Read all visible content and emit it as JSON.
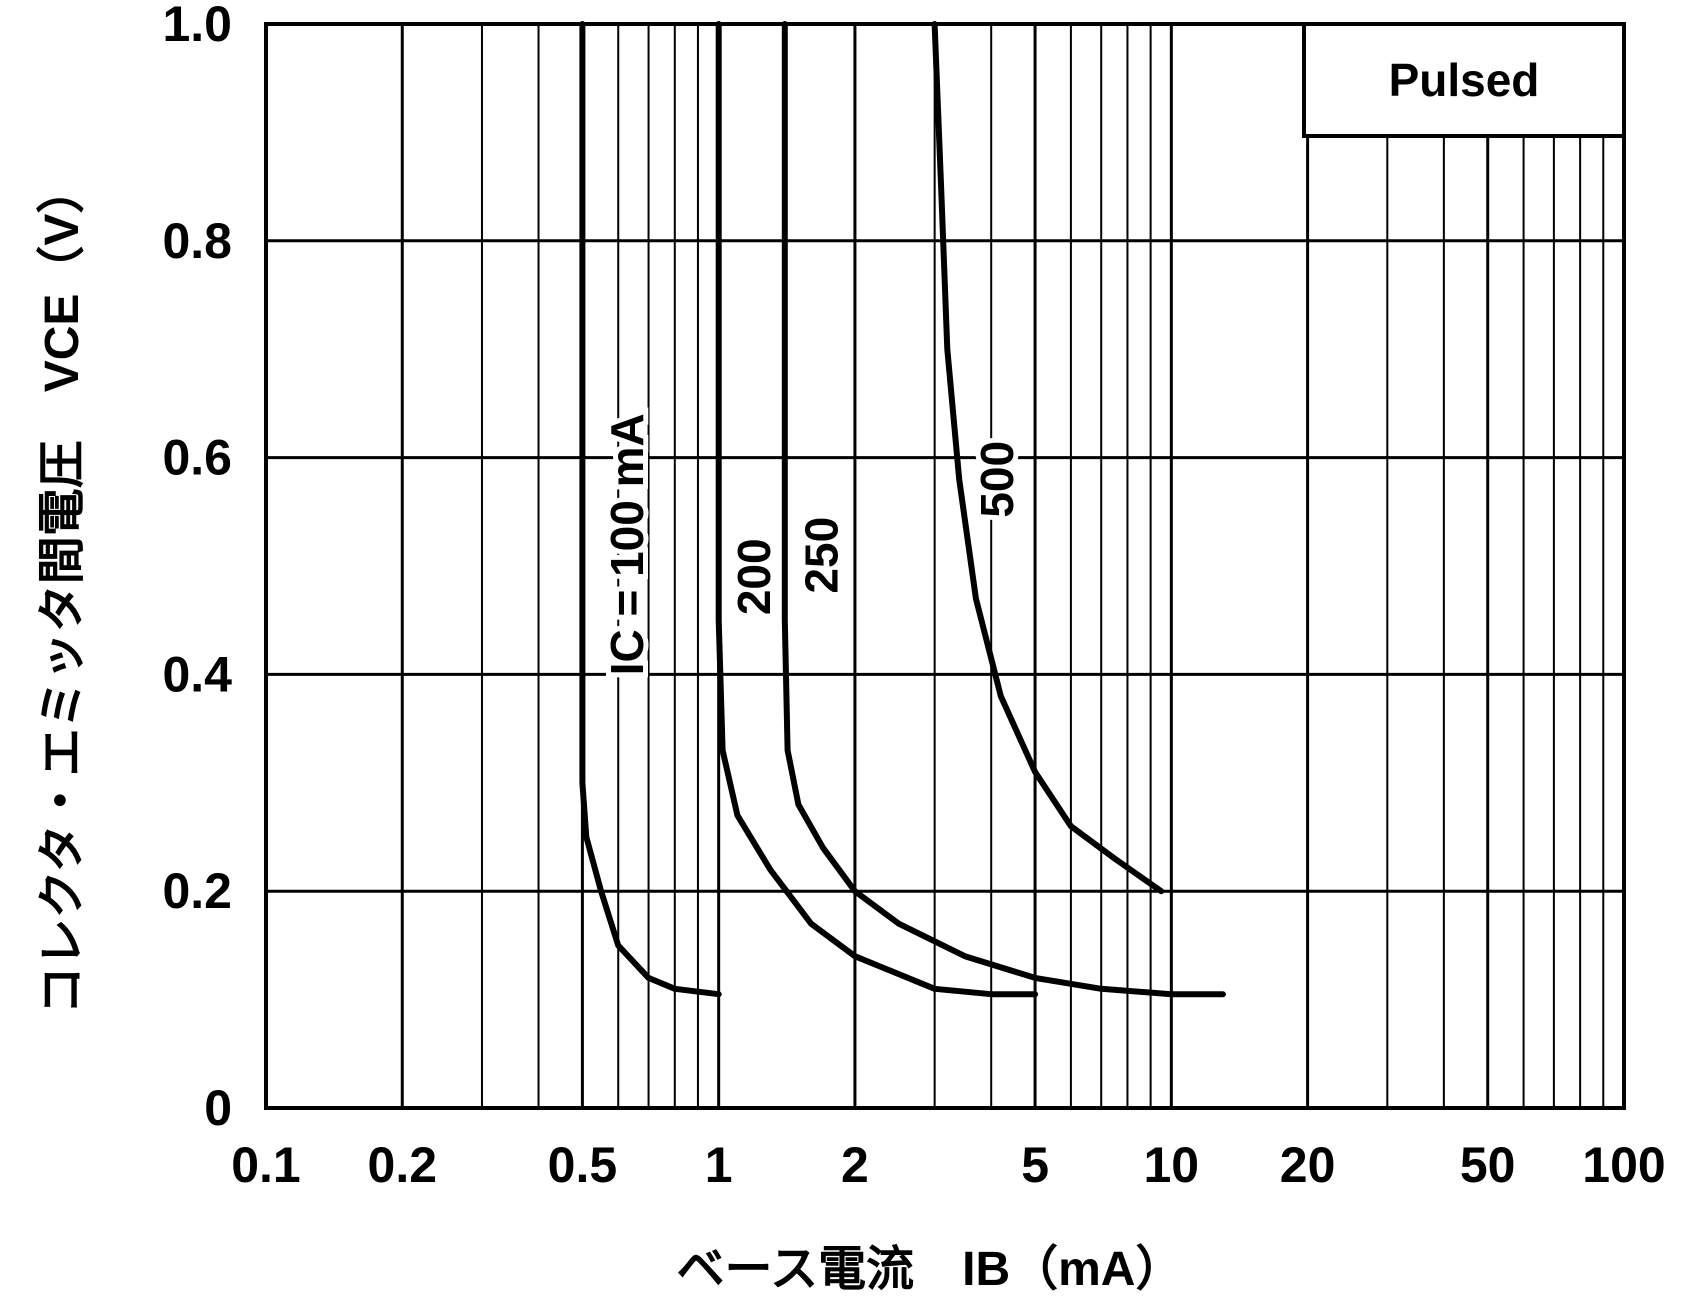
{
  "chart_data": {
    "type": "line",
    "x_scale": "log",
    "xlim": [
      0.1,
      100
    ],
    "ylim": [
      0,
      1.0
    ],
    "grid": true,
    "xlabel": "ベース電流　IB（mA）",
    "ylabel": "コレクタ・エミッタ間電圧　VCE（V）",
    "x_ticks": [
      "0.1",
      "0.2",
      "0.5",
      "1",
      "2",
      "5",
      "10",
      "20",
      "50",
      "100"
    ],
    "y_ticks": [
      "0",
      "0.2",
      "0.4",
      "0.6",
      "0.8",
      "1.0"
    ],
    "legend_box": {
      "text": "Pulsed",
      "placement": "top-right"
    },
    "series": [
      {
        "name": "IC = 100 mA",
        "label": "IC = 100 mA",
        "x": [
          0.5,
          0.5,
          0.51,
          0.55,
          0.6,
          0.7,
          0.8,
          1.0
        ],
        "y": [
          1.0,
          0.3,
          0.25,
          0.2,
          0.15,
          0.12,
          0.11,
          0.105
        ]
      },
      {
        "name": "200",
        "label": "200",
        "x": [
          1.0,
          1.0,
          1.02,
          1.1,
          1.3,
          1.6,
          2.0,
          3.0,
          4.0,
          5.0
        ],
        "y": [
          1.0,
          0.45,
          0.33,
          0.27,
          0.22,
          0.17,
          0.14,
          0.11,
          0.105,
          0.105
        ]
      },
      {
        "name": "250",
        "label": "250",
        "x": [
          1.4,
          1.4,
          1.42,
          1.5,
          1.7,
          2.0,
          2.5,
          3.5,
          5.0,
          7.0,
          10.0,
          13.0
        ],
        "y": [
          1.0,
          0.45,
          0.33,
          0.28,
          0.24,
          0.2,
          0.17,
          0.14,
          0.12,
          0.11,
          0.105,
          0.105
        ]
      },
      {
        "name": "500",
        "label": "500",
        "x": [
          3.0,
          3.1,
          3.2,
          3.4,
          3.7,
          4.2,
          5.0,
          6.0,
          7.5,
          9.5
        ],
        "y": [
          1.0,
          0.85,
          0.7,
          0.58,
          0.47,
          0.38,
          0.31,
          0.26,
          0.23,
          0.2
        ]
      }
    ]
  }
}
